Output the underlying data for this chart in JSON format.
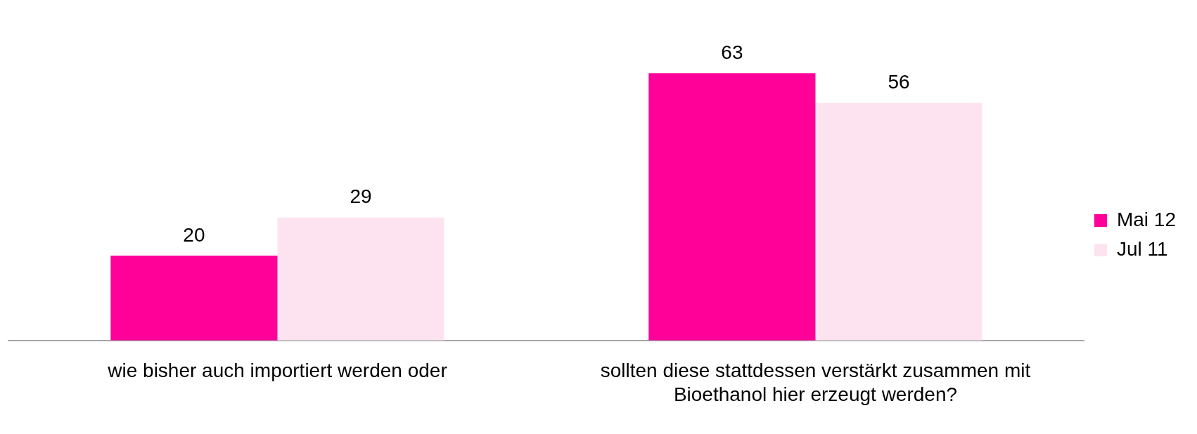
{
  "chart_data": {
    "type": "bar",
    "categories": [
      "wie bisher auch importiert werden oder",
      "sollten diese stattdessen verstärkt zusammen mit Bioethanol hier erzeugt werden?"
    ],
    "series": [
      {
        "name": "Mai 12",
        "color": "#ff0099",
        "values": [
          20,
          63
        ]
      },
      {
        "name": "Jul 11",
        "color": "#fde3f0",
        "values": [
          29,
          56
        ]
      }
    ],
    "data_labels": true,
    "legend": "right",
    "grid": false
  }
}
